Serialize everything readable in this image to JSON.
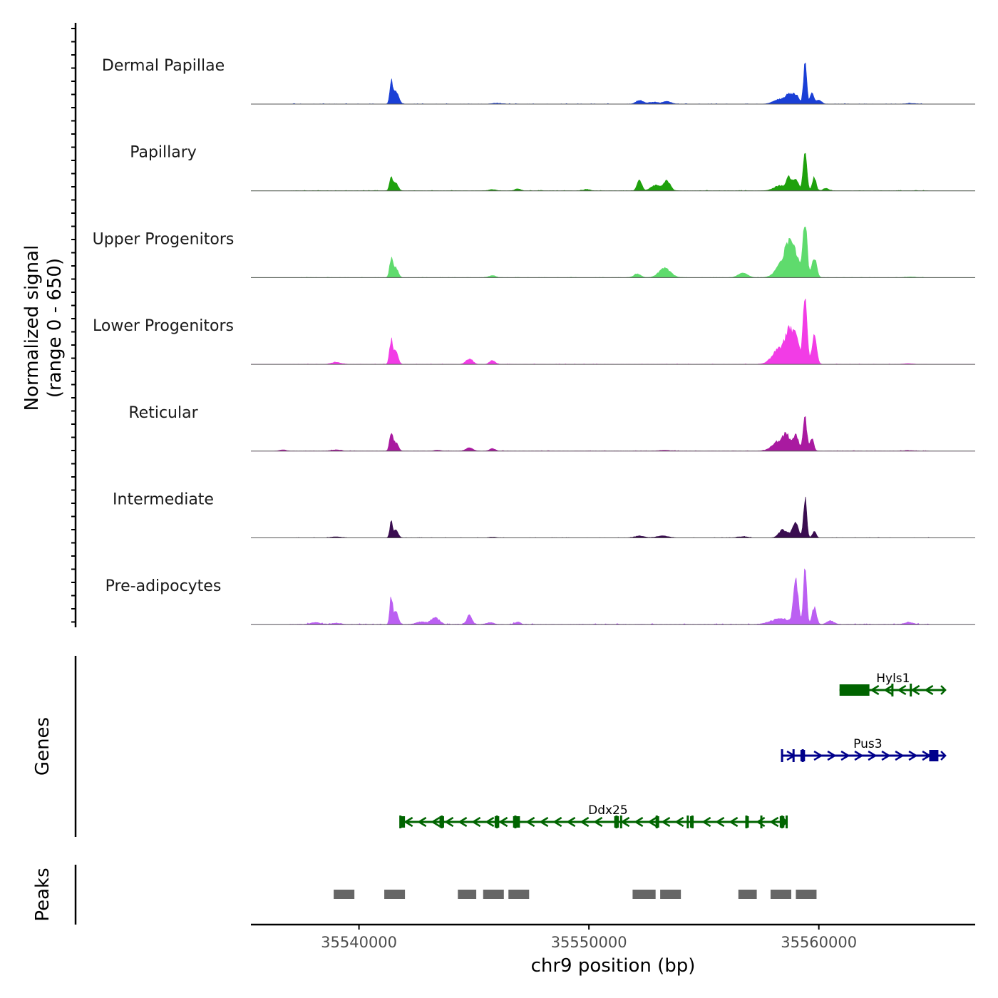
{
  "chart_data": {
    "type": "area",
    "title": "",
    "xlabel": "chr9 position (bp)",
    "ylabel": [
      "Normalized signal",
      "(range 0 - 650)"
    ],
    "y_range": [
      0,
      650
    ],
    "xlim": [
      35535300,
      35566800
    ],
    "x_ticks": [
      35540000,
      35550000,
      35560000
    ],
    "x_tick_labels": [
      "35540000",
      "35550000",
      "35560000"
    ],
    "tracks_label": "",
    "genes_label": "Genes",
    "peaks_label": "Peaks",
    "series": [
      {
        "name": "Dermal Papillae",
        "color": "#1a3fd6",
        "noise": 3,
        "peaks": [
          [
            35541400,
            340,
            60
          ],
          [
            35541600,
            200,
            120
          ],
          [
            35552200,
            60,
            150
          ],
          [
            35552800,
            30,
            220
          ],
          [
            35553400,
            40,
            180
          ],
          [
            35558300,
            80,
            250
          ],
          [
            35558700,
            140,
            140
          ],
          [
            35559000,
            150,
            120
          ],
          [
            35559400,
            650,
            70
          ],
          [
            35559700,
            170,
            80
          ],
          [
            35560000,
            60,
            120
          ],
          [
            35564000,
            10,
            200
          ],
          [
            35546000,
            12,
            200
          ]
        ]
      },
      {
        "name": "Papillary",
        "color": "#1fa10d",
        "noise": 3,
        "peaks": [
          [
            35541400,
            200,
            70
          ],
          [
            35541600,
            120,
            100
          ],
          [
            35545800,
            20,
            150
          ],
          [
            35546900,
            30,
            120
          ],
          [
            35549900,
            20,
            150
          ],
          [
            35552200,
            170,
            100
          ],
          [
            35552900,
            90,
            200
          ],
          [
            35553400,
            160,
            140
          ],
          [
            35558300,
            80,
            250
          ],
          [
            35558700,
            200,
            110
          ],
          [
            35559000,
            170,
            120
          ],
          [
            35559400,
            590,
            80
          ],
          [
            35559800,
            220,
            80
          ],
          [
            35560300,
            40,
            120
          ]
        ]
      },
      {
        "name": "Upper Progenitors",
        "color": "#5fdb6d",
        "noise": 2,
        "peaks": [
          [
            35541400,
            290,
            70
          ],
          [
            35541600,
            160,
            100
          ],
          [
            35545800,
            30,
            150
          ],
          [
            35552100,
            60,
            150
          ],
          [
            35553300,
            150,
            250
          ],
          [
            35556700,
            70,
            200
          ],
          [
            35558500,
            280,
            300
          ],
          [
            35558700,
            330,
            150
          ],
          [
            35559000,
            320,
            150
          ],
          [
            35559400,
            900,
            90
          ],
          [
            35559800,
            330,
            100
          ],
          [
            35564000,
            10,
            200
          ]
        ]
      },
      {
        "name": "Lower Progenitors",
        "color": "#f23ce6",
        "noise": 3,
        "peaks": [
          [
            35539000,
            30,
            200
          ],
          [
            35541400,
            380,
            70
          ],
          [
            35541600,
            200,
            100
          ],
          [
            35544800,
            80,
            150
          ],
          [
            35545800,
            60,
            120
          ],
          [
            35558300,
            260,
            300
          ],
          [
            35558700,
            430,
            150
          ],
          [
            35559000,
            400,
            150
          ],
          [
            35559400,
            980,
            90
          ],
          [
            35559800,
            450,
            100
          ],
          [
            35563900,
            10,
            200
          ]
        ]
      },
      {
        "name": "Reticular",
        "color": "#a91aa0",
        "noise": 3,
        "peaks": [
          [
            35536700,
            20,
            150
          ],
          [
            35539000,
            20,
            200
          ],
          [
            35541400,
            280,
            70
          ],
          [
            35541600,
            140,
            100
          ],
          [
            35543400,
            15,
            150
          ],
          [
            35544800,
            50,
            150
          ],
          [
            35545800,
            40,
            120
          ],
          [
            35553300,
            12,
            250
          ],
          [
            35558300,
            160,
            300
          ],
          [
            35558600,
            200,
            130
          ],
          [
            35559000,
            250,
            120
          ],
          [
            35559400,
            540,
            80
          ],
          [
            35559700,
            200,
            80
          ],
          [
            35563900,
            10,
            200
          ]
        ]
      },
      {
        "name": "Intermediate",
        "color": "#3a0d50",
        "noise": 2,
        "peaks": [
          [
            35539000,
            15,
            200
          ],
          [
            35541400,
            250,
            60
          ],
          [
            35541600,
            120,
            100
          ],
          [
            35545800,
            10,
            150
          ],
          [
            35552200,
            30,
            200
          ],
          [
            35553200,
            30,
            250
          ],
          [
            35556700,
            20,
            200
          ],
          [
            35558400,
            120,
            150
          ],
          [
            35558800,
            70,
            200
          ],
          [
            35559000,
            200,
            110
          ],
          [
            35559400,
            650,
            70
          ],
          [
            35559800,
            100,
            80
          ]
        ]
      },
      {
        "name": "Pre-adipocytes",
        "color": "#bb5ff2",
        "noise": 6,
        "peaks": [
          [
            35538100,
            30,
            200
          ],
          [
            35539000,
            20,
            200
          ],
          [
            35541400,
            440,
            60
          ],
          [
            35541600,
            200,
            100
          ],
          [
            35542700,
            40,
            200
          ],
          [
            35543300,
            110,
            180
          ],
          [
            35544800,
            140,
            110
          ],
          [
            35545700,
            30,
            150
          ],
          [
            35546900,
            40,
            120
          ],
          [
            35558300,
            90,
            400
          ],
          [
            35559000,
            700,
            100
          ],
          [
            35559400,
            900,
            70
          ],
          [
            35559800,
            280,
            90
          ],
          [
            35560500,
            60,
            150
          ],
          [
            35563900,
            30,
            200
          ]
        ]
      }
    ],
    "genes": [
      {
        "name": "Hyls1",
        "color": "#006400",
        "strand": "-",
        "start": 35560900,
        "end": 35565500,
        "thick": [
          [
            35560900,
            35562200
          ]
        ],
        "ticks": [
          35563200,
          35564000
        ],
        "label_pos": 35562300
      },
      {
        "name": "Pus3",
        "color": "#00008b",
        "strand": "+",
        "start": 35558400,
        "end": 35565500,
        "thick": [
          [
            35559200,
            35559400
          ],
          [
            35564800,
            35565200
          ]
        ],
        "ticks": [
          35558400,
          35558900,
          35559300
        ],
        "label_pos": 35561200
      },
      {
        "name": "Ddx25",
        "color": "#006400",
        "strand": "-",
        "start": 35541800,
        "end": 35558600,
        "thick": [
          [
            35541800,
            35542000
          ],
          [
            35543500,
            35543700
          ],
          [
            35545900,
            35546100
          ],
          [
            35546700,
            35547000
          ],
          [
            35551100,
            35551300
          ],
          [
            35552900,
            35553000
          ],
          [
            35554400,
            35554500
          ],
          [
            35556800,
            35556900
          ],
          [
            35558300,
            35558500
          ]
        ],
        "ticks": [
          35541800,
          35543600,
          35546000,
          35546800,
          35551200,
          35551400,
          35552950,
          35554300,
          35554500,
          35556850,
          35557500,
          35558400,
          35558600
        ],
        "label_pos": 35549900
      }
    ],
    "peaks": [
      [
        35538900,
        35539800
      ],
      [
        35541100,
        35542000
      ],
      [
        35544300,
        35545100
      ],
      [
        35545400,
        35546300
      ],
      [
        35546500,
        35547400
      ],
      [
        35551900,
        35552900
      ],
      [
        35553100,
        35554000
      ],
      [
        35556500,
        35557300
      ],
      [
        35557900,
        35558800
      ],
      [
        35559000,
        35559900
      ]
    ]
  }
}
